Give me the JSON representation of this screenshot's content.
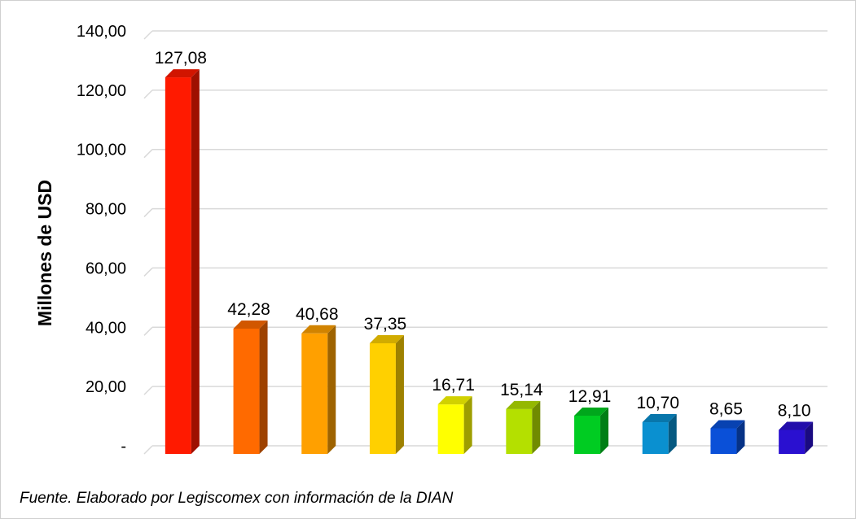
{
  "chart_data": {
    "type": "bar",
    "style": "3d-column",
    "categories": [
      "",
      "",
      "",
      "",
      "",
      "",
      "",
      "",
      "",
      ""
    ],
    "values": [
      127.08,
      42.28,
      40.68,
      37.35,
      16.71,
      15.14,
      12.91,
      10.7,
      8.65,
      8.1
    ],
    "value_labels": [
      "127,08",
      "42,28",
      "40,68",
      "37,35",
      "16,71",
      "15,14",
      "12,91",
      "10,70",
      "8,65",
      "8,10"
    ],
    "bar_colors": [
      "#ff1a00",
      "#ff6a00",
      "#ffa000",
      "#ffd000",
      "#ffff00",
      "#b4e000",
      "#00cc22",
      "#0a90d0",
      "#0a50d8",
      "#2a10d0"
    ],
    "ylabel": "Millones de USD",
    "xlabel": "",
    "ylim": [
      0,
      140
    ],
    "yticks": [
      0,
      20,
      40,
      60,
      80,
      100,
      120,
      140
    ],
    "ytick_labels": [
      "-",
      "20,00",
      "40,00",
      "60,00",
      "80,00",
      "100,00",
      "120,00",
      "140,00"
    ],
    "grid": true,
    "grid_color": "#d9d9d9",
    "legend": "none"
  },
  "source_note": "Fuente. Elaborado por Legiscomex con información de la DIAN"
}
